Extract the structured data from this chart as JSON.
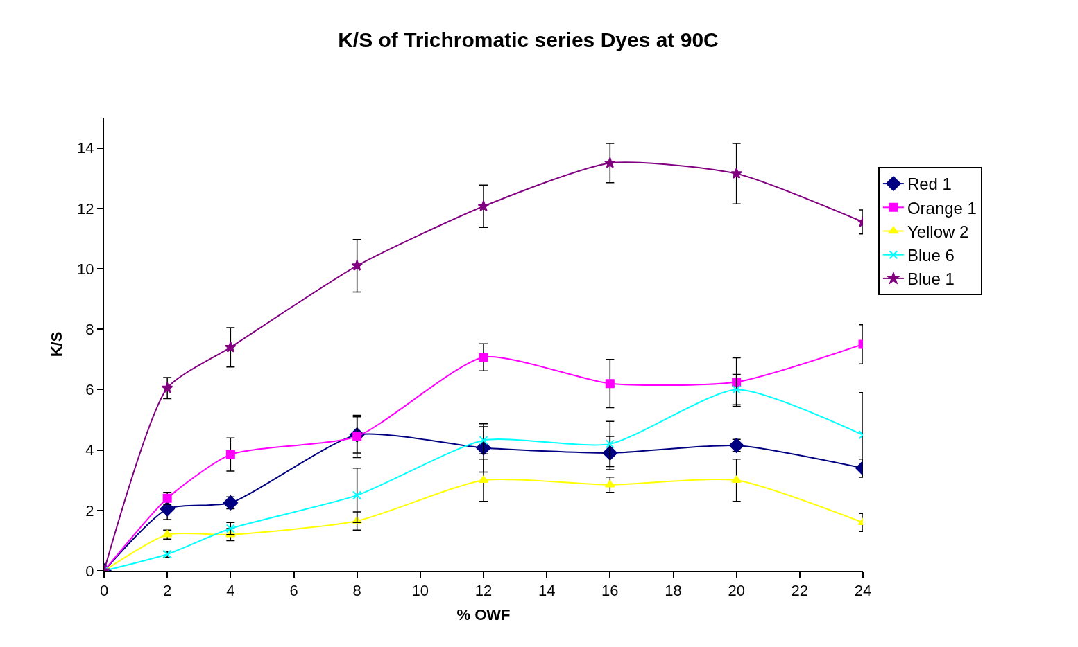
{
  "chart_data": {
    "type": "line",
    "title": "K/S of Trichromatic series Dyes at 90C",
    "xlabel": "% OWF",
    "ylabel": "K/S",
    "x": [
      0,
      2,
      4,
      8,
      12,
      16,
      20,
      24
    ],
    "xlim": [
      0,
      24
    ],
    "xticks": [
      0,
      2,
      4,
      6,
      8,
      10,
      12,
      14,
      16,
      18,
      20,
      22,
      24
    ],
    "ylim": [
      0,
      15
    ],
    "yticks": [
      0,
      2,
      4,
      6,
      8,
      10,
      12,
      14
    ],
    "legend": "right",
    "series": [
      {
        "name": "Red 1",
        "color": "#000080",
        "marker": "diamond",
        "values": [
          0,
          2.05,
          2.25,
          4.5,
          4.07,
          3.9,
          4.15,
          3.4
        ],
        "errors": [
          null,
          0.35,
          0.2,
          0.6,
          0.8,
          0.55,
          0.2,
          0.3
        ]
      },
      {
        "name": "Orange 1",
        "color": "#ff00ff",
        "marker": "square",
        "values": [
          0,
          2.4,
          3.85,
          4.45,
          7.07,
          6.2,
          6.25,
          7.5
        ],
        "errors": [
          null,
          0.2,
          0.55,
          0.7,
          0.45,
          0.8,
          0.8,
          0.65
        ]
      },
      {
        "name": "Yellow 2",
        "color": "#ffff00",
        "marker": "triangle",
        "values": [
          0,
          1.2,
          1.2,
          1.65,
          3.0,
          2.85,
          3.0,
          1.6
        ],
        "errors": [
          null,
          0.15,
          0.2,
          0.3,
          0.7,
          0.25,
          0.7,
          0.3
        ]
      },
      {
        "name": "Blue 6",
        "color": "#00ffff",
        "marker": "cross",
        "values": [
          0,
          0.55,
          1.4,
          2.5,
          4.32,
          4.2,
          6.0,
          4.5
        ],
        "errors": [
          null,
          0.1,
          0.2,
          0.9,
          0.45,
          0.75,
          0.5,
          1.4
        ]
      },
      {
        "name": "Blue 1",
        "color": "#800080",
        "marker": "star",
        "values": [
          0,
          6.05,
          7.4,
          10.1,
          12.07,
          13.5,
          13.15,
          11.55
        ],
        "errors": [
          null,
          0.35,
          0.65,
          0.87,
          0.7,
          0.65,
          1.0,
          0.4
        ]
      }
    ]
  }
}
